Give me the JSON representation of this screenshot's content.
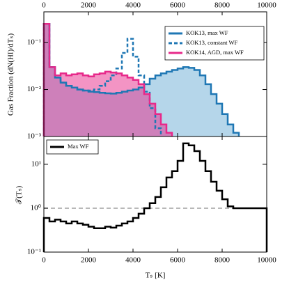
{
  "chart_data": [
    {
      "type": "histogram",
      "ylabel": "Gas Fraction (dN(HI)/dTₛ)",
      "bins": [
        0,
        250,
        500,
        750,
        1000,
        1250,
        1500,
        1750,
        2000,
        2250,
        2500,
        2750,
        3000,
        3250,
        3500,
        3750,
        4000,
        4250,
        4500,
        4750,
        5000,
        5250,
        5500,
        5750,
        6000,
        6250,
        6500,
        6750,
        7000,
        7250,
        7500,
        7750,
        8000,
        8250,
        8500,
        8750,
        9000,
        9250,
        9500,
        9750,
        10000
      ],
      "series": [
        {
          "name": "KOK13, max WF",
          "color": "#1f77b4",
          "fill": "#6baed6",
          "style": "solid",
          "values": [
            0.25,
            0.03,
            0.018,
            0.014,
            0.012,
            0.011,
            0.01,
            0.0095,
            0.009,
            0.0088,
            0.0085,
            0.0083,
            0.0082,
            0.0085,
            0.009,
            0.0095,
            0.01,
            0.011,
            0.013,
            0.017,
            0.02,
            0.022,
            0.024,
            0.026,
            0.028,
            0.03,
            0.029,
            0.026,
            0.02,
            0.013,
            0.008,
            0.005,
            0.003,
            0.0018,
            0.0012,
            null,
            null,
            null,
            null,
            null
          ]
        },
        {
          "name": "KOK13, constant WF",
          "color": "#1f77b4",
          "style": "dashed",
          "values": [
            0.25,
            0.03,
            0.018,
            0.014,
            0.012,
            0.011,
            0.01,
            0.0095,
            0.0095,
            0.01,
            0.012,
            0.015,
            0.02,
            0.028,
            0.06,
            0.12,
            0.05,
            0.02,
            0.009,
            0.004,
            0.0015,
            null,
            null,
            null,
            null,
            null,
            null,
            null,
            null,
            null,
            null,
            null,
            null,
            null,
            null,
            null,
            null,
            null,
            null,
            null
          ]
        },
        {
          "name": "KOK14, AGD, max WF",
          "color": "#e7298a",
          "fill": "#e7298a",
          "style": "solid",
          "values": [
            0.25,
            0.03,
            0.02,
            0.022,
            0.02,
            0.021,
            0.022,
            0.02,
            0.019,
            0.021,
            0.022,
            0.024,
            0.023,
            0.022,
            0.02,
            0.018,
            0.016,
            0.013,
            0.008,
            0.005,
            0.003,
            0.0018,
            0.0012,
            null,
            null,
            null,
            null,
            null,
            null,
            null,
            null,
            null,
            null,
            null,
            null,
            null,
            null,
            null,
            null,
            null
          ]
        }
      ],
      "xlim": [
        0,
        10000
      ],
      "xticks": [
        0,
        2000,
        4000,
        6000,
        8000,
        10000
      ],
      "ylim": [
        0.001,
        0.45
      ],
      "log_y": true,
      "yticks": [
        {
          "value": 0.001,
          "label": "10⁻³"
        },
        {
          "value": 0.01,
          "label": "10⁻²"
        },
        {
          "value": 0.1,
          "label": "10⁻¹"
        }
      ],
      "legend": "upper right"
    },
    {
      "type": "histogram",
      "xlabel": "Tₛ [K]",
      "ylabel": "𝒯(Tₛ)",
      "bins": [
        0,
        250,
        500,
        750,
        1000,
        1250,
        1500,
        1750,
        2000,
        2250,
        2500,
        2750,
        3000,
        3250,
        3500,
        3750,
        4000,
        4250,
        4500,
        4750,
        5000,
        5250,
        5500,
        5750,
        6000,
        6250,
        6500,
        6750,
        7000,
        7250,
        7500,
        7750,
        8000,
        8250,
        8500,
        8750,
        9000,
        9250,
        9500,
        9750,
        10000
      ],
      "series": [
        {
          "name": "Max WF",
          "color": "#000000",
          "style": "solid",
          "values": [
            0.6,
            0.5,
            0.55,
            0.5,
            0.45,
            0.5,
            0.45,
            0.42,
            0.38,
            0.35,
            0.35,
            0.38,
            0.36,
            0.4,
            0.45,
            0.5,
            0.6,
            0.75,
            1.0,
            1.3,
            1.8,
            3,
            5,
            7,
            12,
            30,
            27,
            20,
            12,
            7,
            4,
            2.5,
            1.6,
            1.1,
            1.0,
            1.0,
            1.0,
            1.0,
            1.0,
            1.0
          ]
        }
      ],
      "reference_line": 1,
      "reference_color": "#a0a0a0",
      "xlim": [
        0,
        10000
      ],
      "xticks": [
        0,
        2000,
        4000,
        6000,
        8000,
        10000
      ],
      "ylim": [
        0.1,
        43
      ],
      "log_y": true,
      "yticks": [
        {
          "value": 0.1,
          "label": "10⁻¹"
        },
        {
          "value": 1,
          "label": "10⁰"
        },
        {
          "value": 10,
          "label": "10¹"
        }
      ],
      "legend": "upper left"
    }
  ]
}
